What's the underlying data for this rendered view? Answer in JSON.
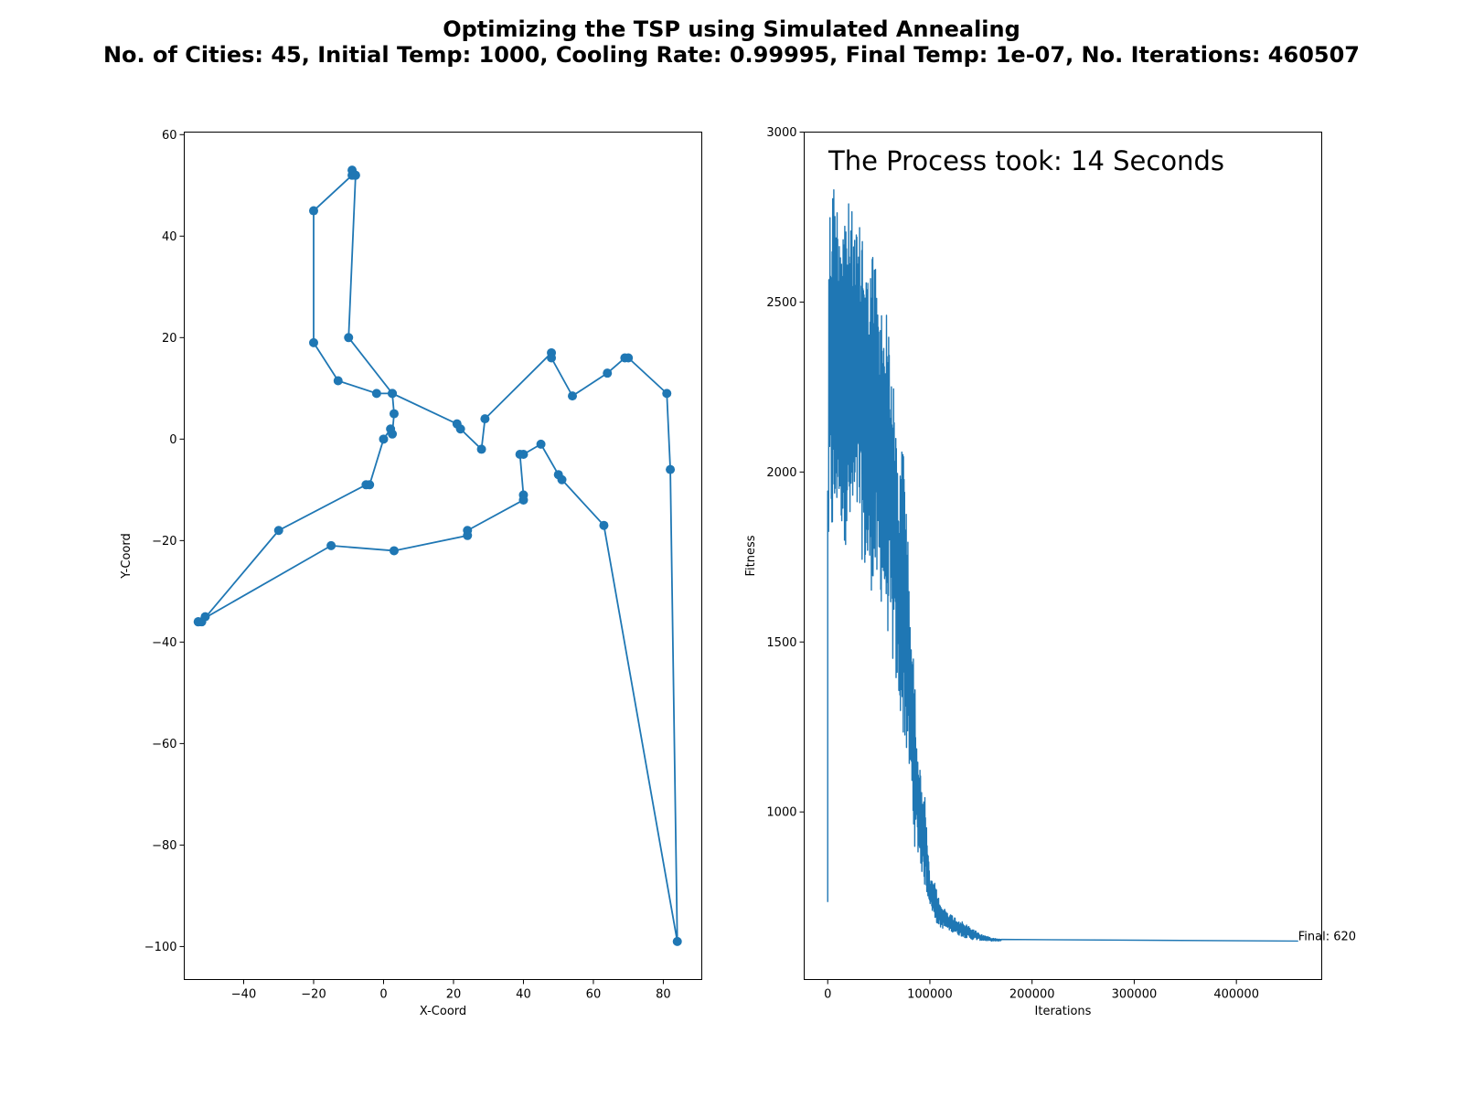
{
  "figure": {
    "title_line1": "Optimizing the TSP using Simulated Annealing",
    "title_line2": "No. of Cities: 45, Initial Temp: 1000, Cooling Rate: 0.99995, Final Temp: 1e-07, No. Iterations: 460507",
    "line_color": "#1f77b4"
  },
  "chart_data": [
    {
      "type": "line",
      "markers": true,
      "title": "",
      "xlabel": "X-Coord",
      "ylabel": "Y-Coord",
      "xlim": [
        -57,
        91
      ],
      "ylim": [
        -106.5,
        60.5
      ],
      "xticks": [
        -40,
        -20,
        0,
        20,
        40,
        60,
        80
      ],
      "yticks": [
        60,
        40,
        20,
        0,
        -20,
        -40,
        -60,
        -80,
        -100
      ],
      "grid": false,
      "series": [
        {
          "x": [
            -53,
            -51,
            -52,
            -30,
            -5,
            -4,
            0,
            2,
            2.5,
            3,
            2.5,
            -2,
            -13,
            -20,
            -20,
            -9,
            -9,
            -8,
            -10,
            2.5,
            21,
            22,
            28,
            29,
            48,
            48,
            54,
            64,
            69,
            70,
            81,
            82,
            84,
            63,
            51,
            50,
            45,
            40,
            39,
            40,
            40,
            24,
            24,
            3,
            -15,
            -53
          ],
          "y": [
            -36,
            -35,
            -36,
            -18,
            -9,
            -9,
            0,
            2,
            1,
            5,
            9,
            9,
            11.5,
            19,
            45,
            52,
            53,
            52,
            20,
            9,
            3,
            2,
            -2,
            4,
            17,
            16,
            8.5,
            13,
            16,
            16,
            9,
            -6,
            -99,
            -17,
            -8,
            -7,
            -1,
            -3,
            -3,
            -11,
            -12,
            -18,
            -19,
            -22,
            -21,
            -36
          ]
        }
      ]
    },
    {
      "type": "line",
      "title": "",
      "xlabel": "Iterations",
      "ylabel": "Fitness",
      "xlim": [
        -23025,
        483532
      ],
      "ylim": [
        507,
        3000
      ],
      "xticks": [
        0,
        100000,
        200000,
        300000,
        400000
      ],
      "yticks": [
        1000,
        1500,
        2000,
        2500,
        3000
      ],
      "grid": false,
      "annotations": [
        {
          "text": "The Process took: 14 Seconds"
        },
        {
          "text": "Final: 620",
          "x": 460507,
          "y": 620
        }
      ],
      "series": [
        {
          "envelope_x": [
            0,
            1000,
            2000,
            5000,
            10000,
            15000,
            20000,
            25000,
            30000,
            35000,
            40000,
            45000,
            50000,
            55000,
            60000,
            65000,
            70000,
            75000,
            80000,
            85000,
            90000,
            95000,
            100000,
            105000,
            110000,
            120000,
            130000,
            140000,
            150000,
            160000,
            170000,
            200000,
            300000,
            400000,
            460507
          ],
          "envelope_high": [
            735,
            2750,
            2800,
            2890,
            2800,
            2820,
            2800,
            2760,
            2700,
            2790,
            2560,
            2700,
            2500,
            2500,
            2450,
            2230,
            2000,
            2150,
            1650,
            1400,
            1130,
            1050,
            800,
            790,
            730,
            700,
            680,
            660,
            640,
            630,
            625,
            622,
            620,
            620,
            620
          ],
          "envelope_low": [
            735,
            1900,
            1850,
            1750,
            1900,
            1800,
            1770,
            1800,
            1850,
            1700,
            1650,
            1650,
            1620,
            1600,
            1500,
            1400,
            1300,
            1200,
            1100,
            900,
            850,
            780,
            730,
            680,
            660,
            650,
            635,
            625,
            622,
            620,
            620,
            620,
            620,
            620,
            620
          ]
        }
      ]
    }
  ]
}
